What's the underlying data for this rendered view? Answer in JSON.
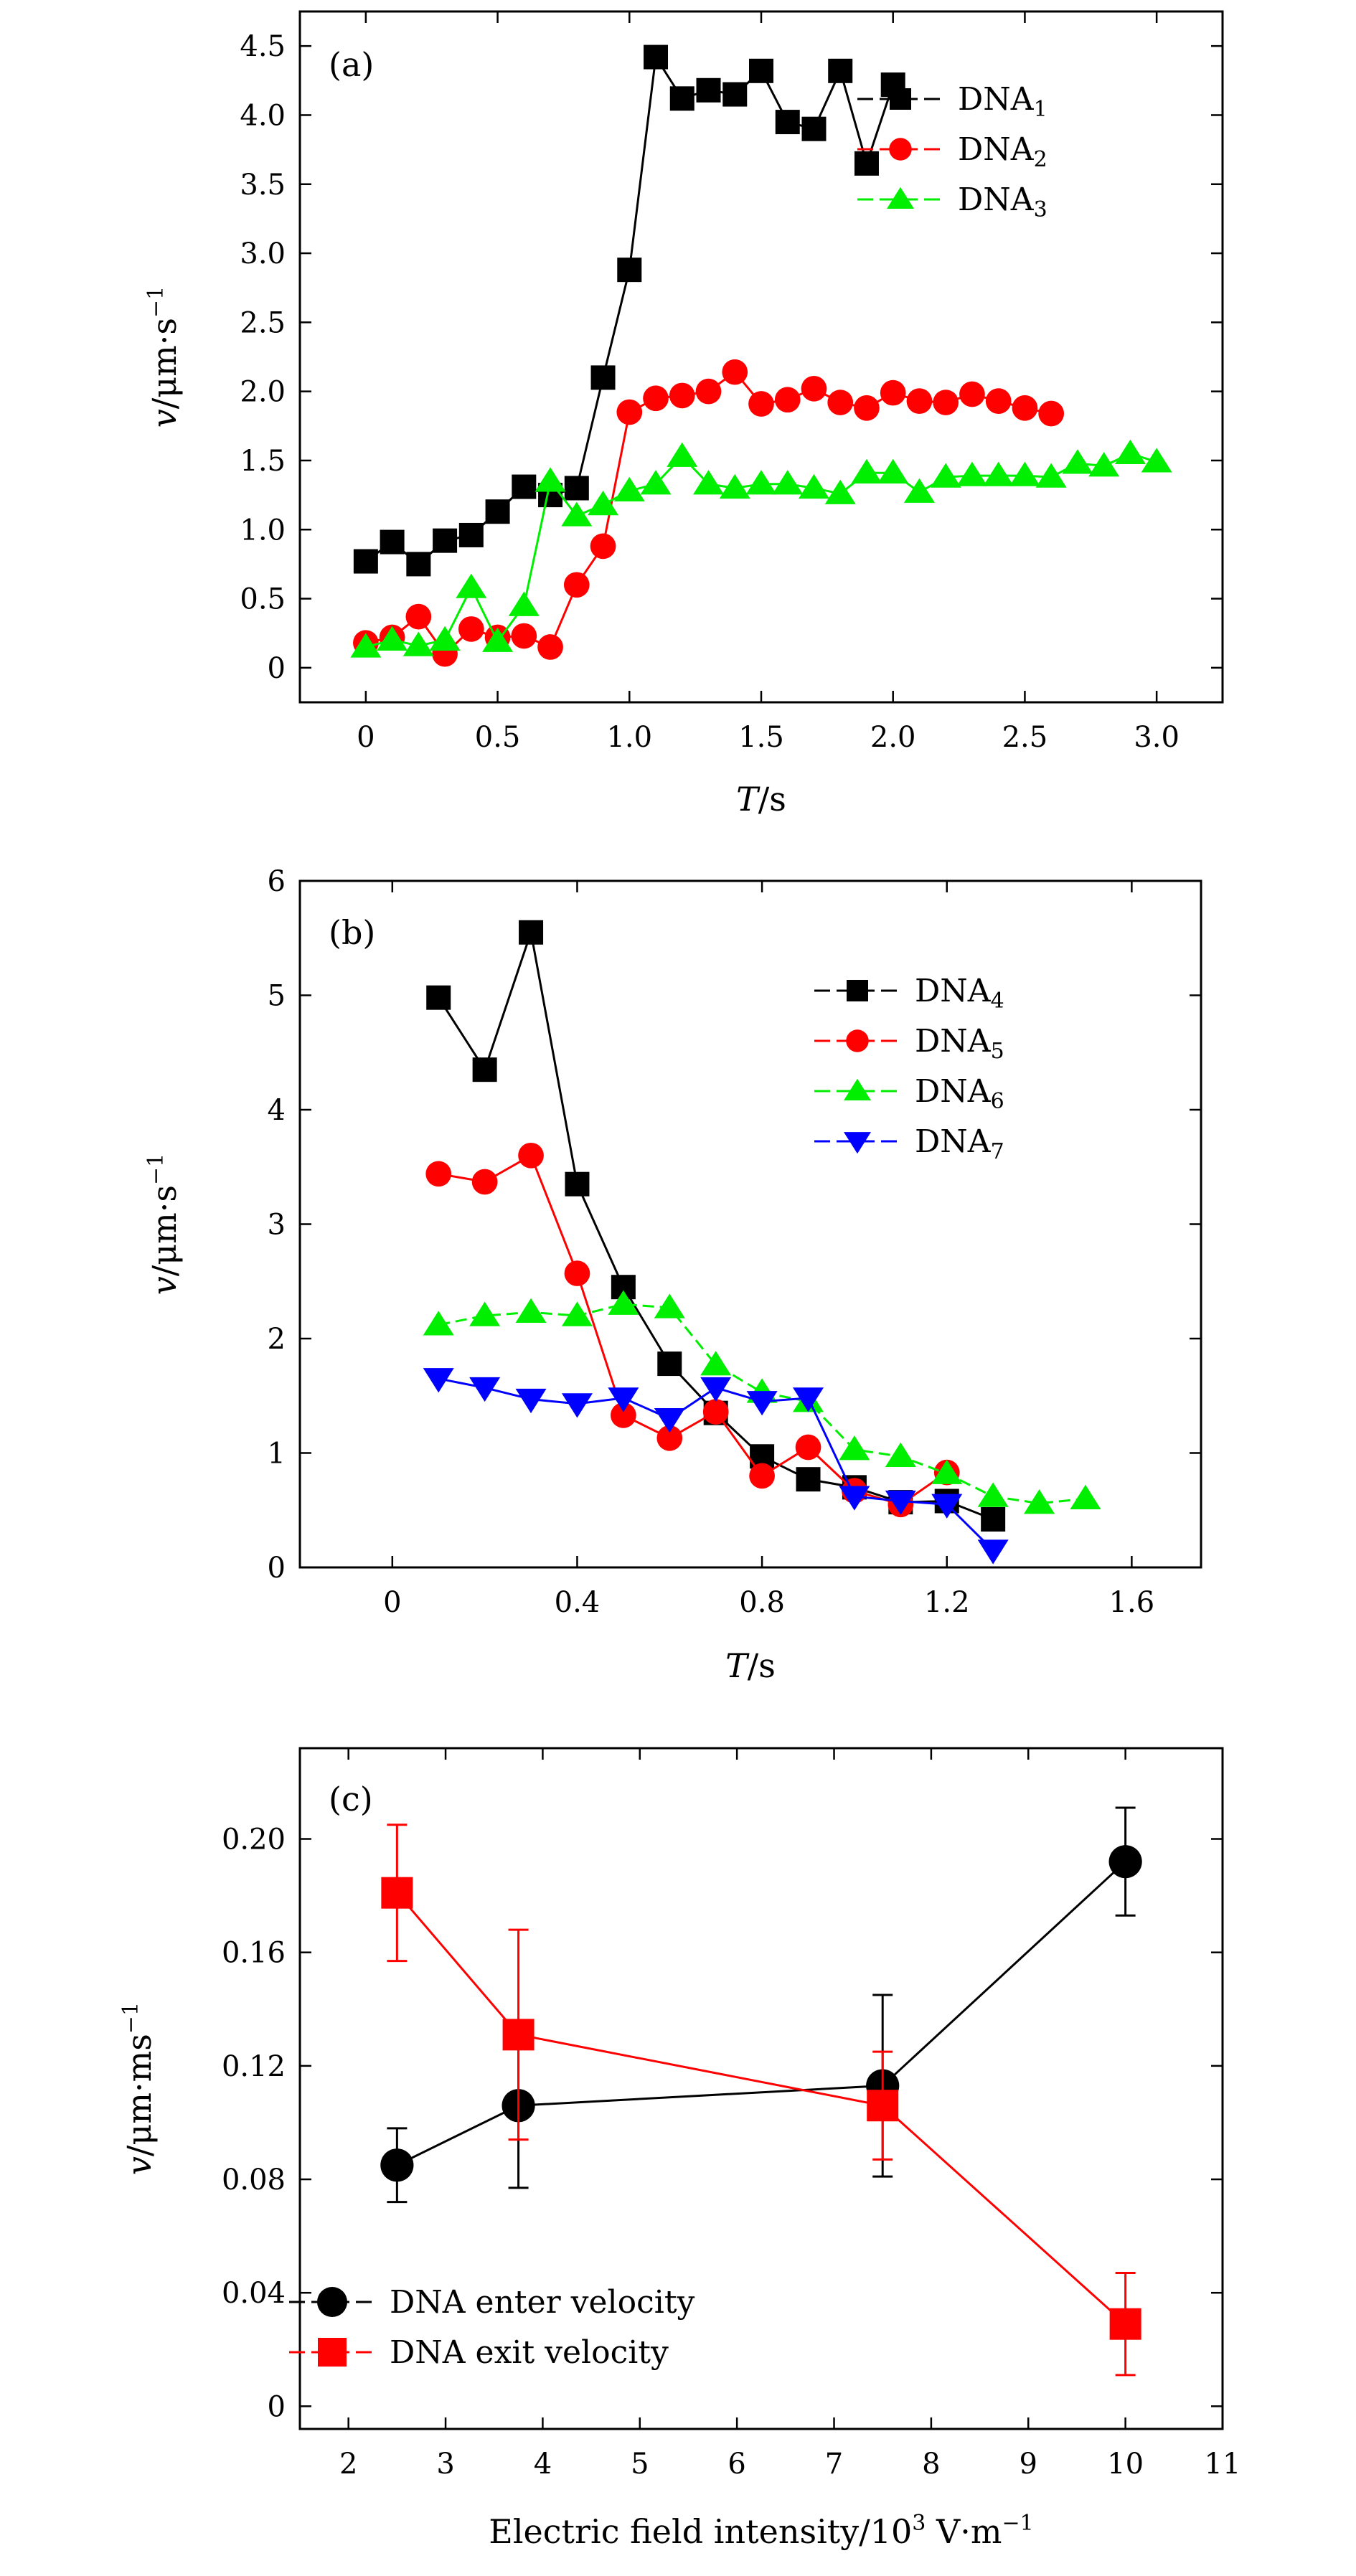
{
  "chart_data": [
    {
      "type": "line",
      "panel": "(a)",
      "xlabel_var": "T",
      "xlabel_unit": "/s",
      "ylabel_var": "v",
      "ylabel_unit": "/μm·s",
      "ylabel_exp": "−1",
      "xlim": [
        -0.25,
        3.25
      ],
      "ylim": [
        -0.25,
        4.75
      ],
      "xticks": [
        0,
        0.5,
        1.0,
        1.5,
        2.0,
        2.5,
        3.0
      ],
      "xtick_labels": [
        "0",
        "0.5",
        "1.0",
        "1.5",
        "2.0",
        "2.5",
        "3.0"
      ],
      "yticks": [
        0,
        0.5,
        1.0,
        1.5,
        2.0,
        2.5,
        3.0,
        3.5,
        4.0,
        4.5
      ],
      "ytick_labels": [
        "0",
        "0.5",
        "1.0",
        "1.5",
        "2.0",
        "2.5",
        "3.0",
        "3.5",
        "4.0",
        "4.5"
      ],
      "legend_position": "top-right",
      "series": [
        {
          "name": "DNA",
          "sub": "1",
          "color": "#000000",
          "marker": "square",
          "line": "solid",
          "x": [
            0,
            0.1,
            0.2,
            0.3,
            0.4,
            0.5,
            0.6,
            0.7,
            0.8,
            0.9,
            1.0,
            1.1,
            1.2,
            1.3,
            1.4,
            1.5,
            1.6,
            1.7,
            1.8,
            1.9,
            2.0
          ],
          "y": [
            0.77,
            0.91,
            0.75,
            0.92,
            0.96,
            1.13,
            1.31,
            1.25,
            1.3,
            2.1,
            2.88,
            4.42,
            4.12,
            4.18,
            4.15,
            4.32,
            3.95,
            3.9,
            4.32,
            3.65,
            4.22
          ]
        },
        {
          "name": "DNA",
          "sub": "2",
          "color": "#ff0000",
          "marker": "circle",
          "line": "solid",
          "x": [
            0,
            0.1,
            0.2,
            0.3,
            0.4,
            0.5,
            0.6,
            0.7,
            0.8,
            0.9,
            1.0,
            1.1,
            1.2,
            1.3,
            1.4,
            1.5,
            1.6,
            1.7,
            1.8,
            1.9,
            2.0,
            2.1,
            2.2,
            2.3,
            2.4,
            2.5,
            2.6
          ],
          "y": [
            0.18,
            0.22,
            0.37,
            0.1,
            0.28,
            0.22,
            0.23,
            0.15,
            0.6,
            0.88,
            1.85,
            1.95,
            1.97,
            2.0,
            2.14,
            1.91,
            1.94,
            2.02,
            1.92,
            1.88,
            1.99,
            1.93,
            1.92,
            1.98,
            1.93,
            1.88,
            1.84
          ]
        },
        {
          "name": "DNA",
          "sub": "3",
          "color": "#00ee00",
          "marker": "triangle-up",
          "line": "solid",
          "x": [
            0,
            0.1,
            0.2,
            0.3,
            0.4,
            0.5,
            0.6,
            0.7,
            0.8,
            0.9,
            1.0,
            1.1,
            1.2,
            1.3,
            1.4,
            1.5,
            1.6,
            1.7,
            1.8,
            1.9,
            2.0,
            2.1,
            2.2,
            2.3,
            2.4,
            2.5,
            2.6,
            2.7,
            2.8,
            2.9,
            3.0
          ],
          "y": [
            0.15,
            0.2,
            0.16,
            0.2,
            0.58,
            0.19,
            0.45,
            1.35,
            1.1,
            1.18,
            1.28,
            1.33,
            1.53,
            1.33,
            1.3,
            1.33,
            1.33,
            1.3,
            1.26,
            1.41,
            1.41,
            1.27,
            1.38,
            1.39,
            1.39,
            1.39,
            1.38,
            1.48,
            1.46,
            1.55,
            1.49
          ]
        }
      ]
    },
    {
      "type": "line",
      "panel": "(b)",
      "xlabel_var": "T",
      "xlabel_unit": "/s",
      "ylabel_var": "v",
      "ylabel_unit": "/μm·s",
      "ylabel_exp": "−1",
      "xlim": [
        -0.2,
        1.75
      ],
      "ylim": [
        0,
        6
      ],
      "xticks": [
        0,
        0.4,
        0.8,
        1.2,
        1.6
      ],
      "xtick_labels": [
        "0",
        "0.4",
        "0.8",
        "1.2",
        "1.6"
      ],
      "yticks": [
        0,
        1,
        2,
        3,
        4,
        5,
        6
      ],
      "ytick_labels": [
        "0",
        "1",
        "2",
        "3",
        "4",
        "5",
        "6"
      ],
      "legend_position": "top-right",
      "series": [
        {
          "name": "DNA",
          "sub": "4",
          "color": "#000000",
          "marker": "square",
          "line": "solid",
          "x": [
            0.1,
            0.2,
            0.3,
            0.4,
            0.5,
            0.6,
            0.7,
            0.8,
            0.9,
            1.0,
            1.1,
            1.2,
            1.3
          ],
          "y": [
            4.98,
            4.35,
            5.55,
            3.35,
            2.45,
            1.78,
            1.35,
            0.97,
            0.77,
            0.7,
            0.57,
            0.58,
            0.42
          ]
        },
        {
          "name": "DNA",
          "sub": "5",
          "color": "#ff0000",
          "marker": "circle",
          "line": "solid",
          "x": [
            0.1,
            0.2,
            0.3,
            0.4,
            0.5,
            0.6,
            0.7,
            0.8,
            0.9,
            1.0,
            1.1,
            1.2
          ],
          "y": [
            3.44,
            3.37,
            3.6,
            2.57,
            1.33,
            1.13,
            1.36,
            0.8,
            1.05,
            0.67,
            0.55,
            0.83
          ]
        },
        {
          "name": "DNA",
          "sub": "6",
          "color": "#00ee00",
          "marker": "triangle-up",
          "line": "dashed",
          "x": [
            0.1,
            0.2,
            0.3,
            0.4,
            0.5,
            0.6,
            0.7,
            0.8,
            0.9,
            1.0,
            1.1,
            1.2,
            1.3,
            1.4,
            1.5
          ],
          "y": [
            2.12,
            2.2,
            2.23,
            2.2,
            2.3,
            2.27,
            1.77,
            1.53,
            1.45,
            1.03,
            0.97,
            0.82,
            0.62,
            0.56,
            0.6
          ]
        },
        {
          "name": "DNA",
          "sub": "7",
          "color": "#0000ff",
          "marker": "triangle-down",
          "line": "solid",
          "x": [
            0.1,
            0.2,
            0.3,
            0.4,
            0.5,
            0.6,
            0.7,
            0.8,
            0.9,
            1.0,
            1.1,
            1.2,
            1.3
          ],
          "y": [
            1.65,
            1.57,
            1.47,
            1.43,
            1.48,
            1.3,
            1.57,
            1.45,
            1.48,
            0.62,
            0.58,
            0.55,
            0.15
          ]
        }
      ]
    },
    {
      "type": "line",
      "panel": "(c)",
      "xlabel_text": "Electric field intensity/10",
      "xlabel_sup1": "3",
      "xlabel_mid": " V·m",
      "xlabel_sup2": "−1",
      "ylabel_var": "v",
      "ylabel_unit": "/μm·ms",
      "ylabel_exp": "−1",
      "xlim": [
        1.5,
        11
      ],
      "ylim": [
        -0.008,
        0.232
      ],
      "xticks": [
        2,
        3,
        4,
        5,
        6,
        7,
        8,
        9,
        10,
        11
      ],
      "xtick_labels": [
        "2",
        "3",
        "4",
        "5",
        "6",
        "7",
        "8",
        "9",
        "10",
        "11"
      ],
      "yticks": [
        0,
        0.04,
        0.08,
        0.12,
        0.16,
        0.2
      ],
      "ytick_labels": [
        "0",
        "0.04",
        "0.08",
        "0.12",
        "0.16",
        "0.20"
      ],
      "legend_position": "bottom-left",
      "series": [
        {
          "name": "DNA enter velocity",
          "color": "#000000",
          "marker": "circle",
          "line": "solid",
          "x": [
            2.5,
            3.75,
            7.5,
            10
          ],
          "y": [
            0.085,
            0.106,
            0.113,
            0.192
          ],
          "err": [
            0.013,
            0.029,
            0.032,
            0.019
          ]
        },
        {
          "name": "DNA exit velocity",
          "color": "#ff0000",
          "marker": "square",
          "line": "solid",
          "x": [
            2.5,
            3.75,
            7.5,
            10
          ],
          "y": [
            0.181,
            0.131,
            0.106,
            0.029
          ],
          "err": [
            0.024,
            0.037,
            0.019,
            0.018
          ]
        }
      ]
    }
  ]
}
